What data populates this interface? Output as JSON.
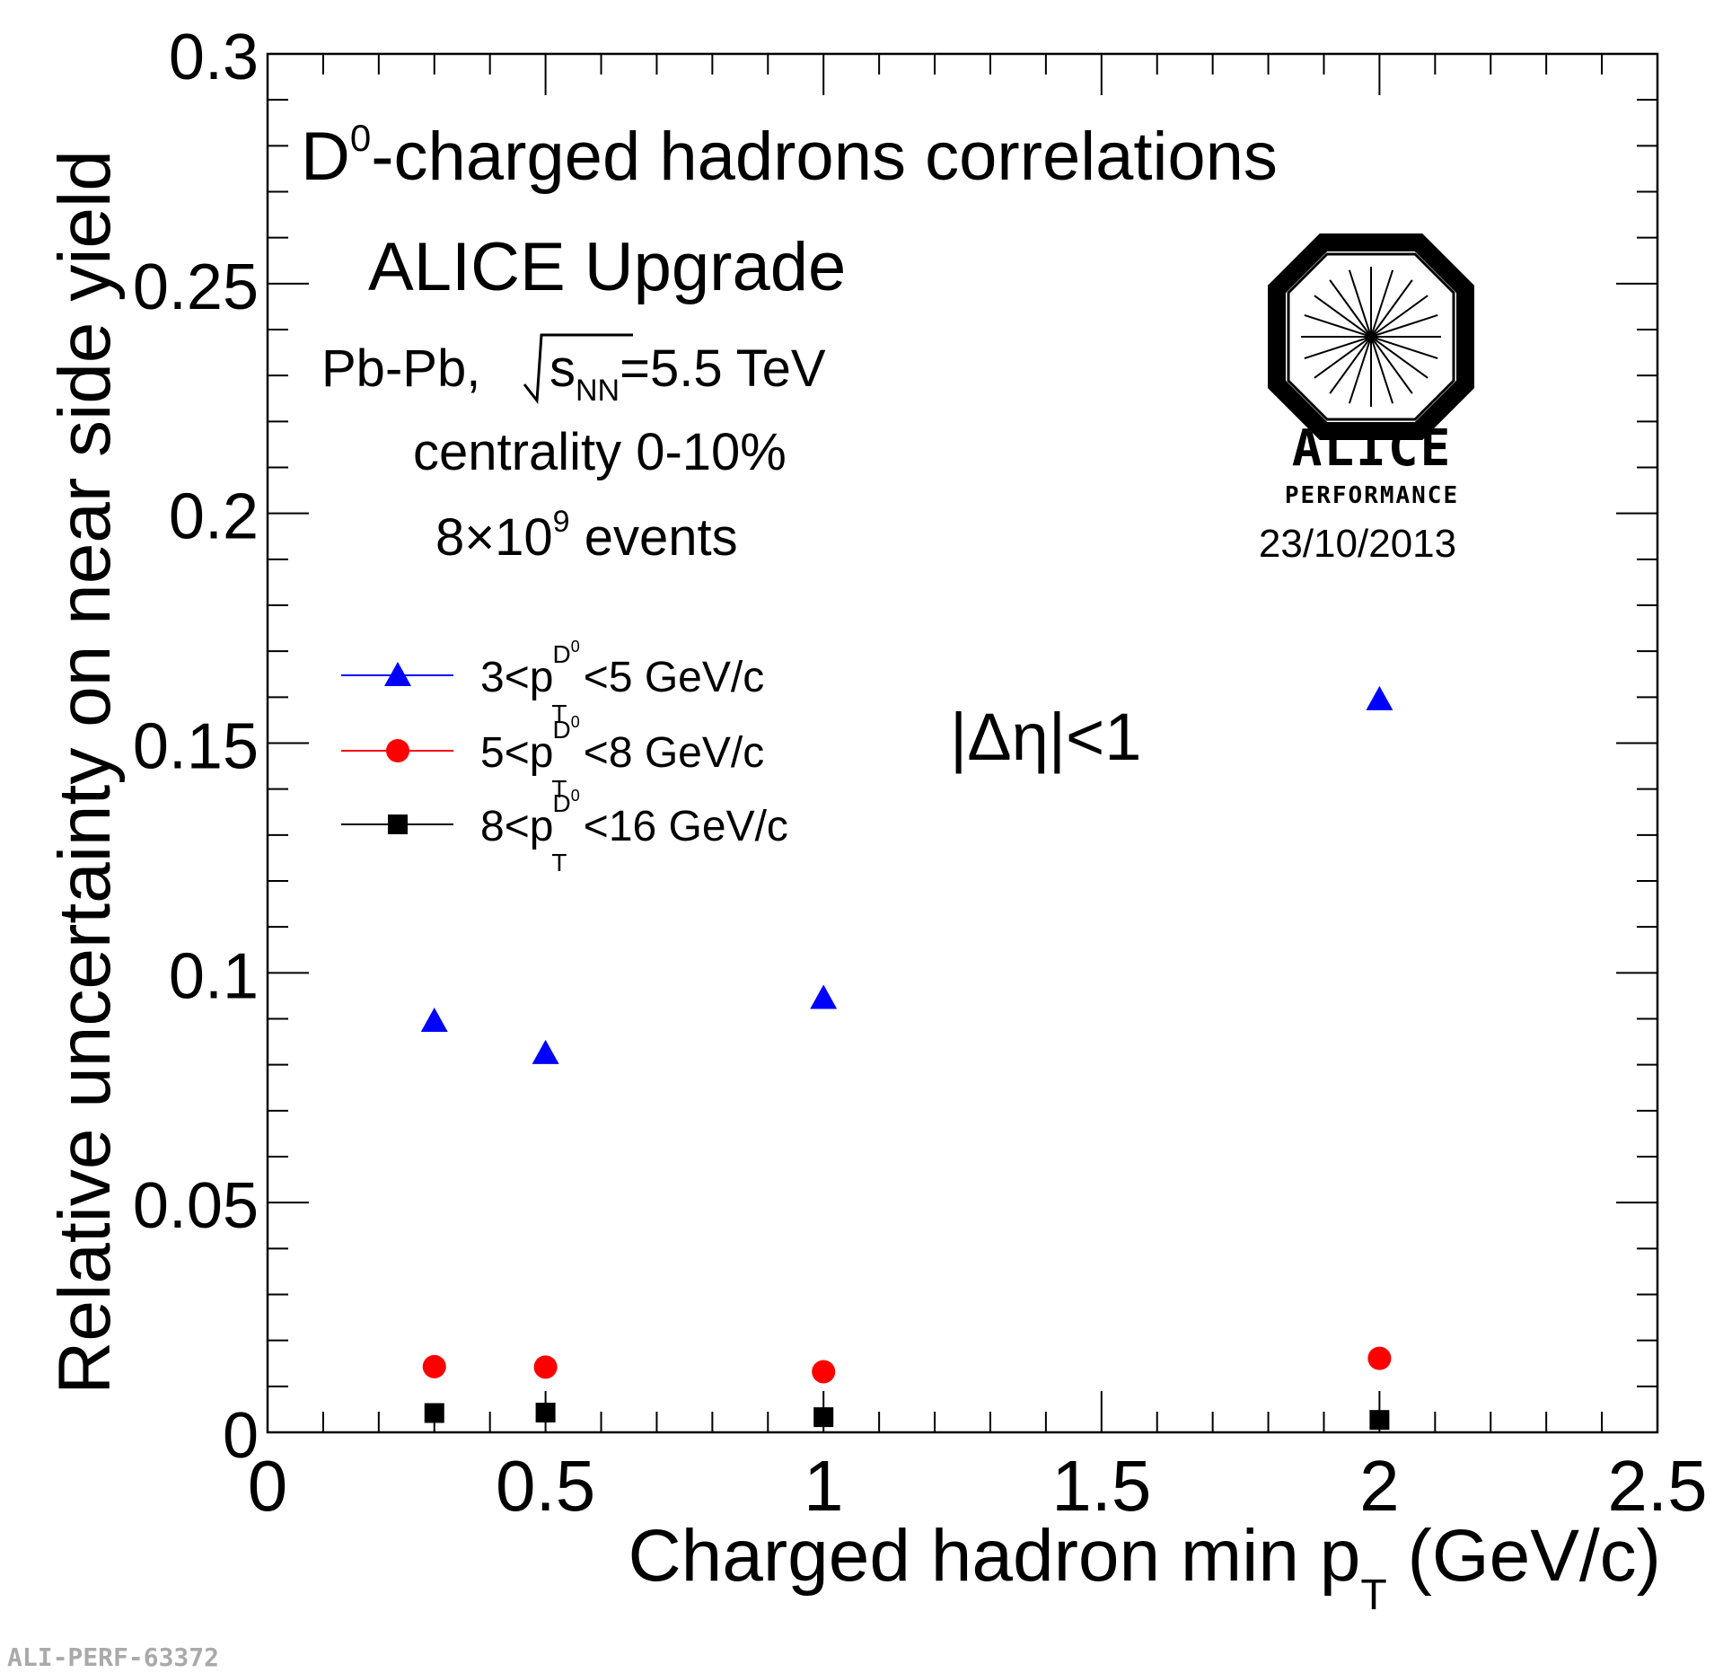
{
  "chart_data": {
    "type": "scatter",
    "title": "D0-charged hadrons correlations",
    "xlabel": "Charged hadron min pT (GeV/c)",
    "ylabel": "Relative uncertainty on near side yield",
    "xlim": [
      0,
      2.5
    ],
    "ylim": [
      0,
      0.3
    ],
    "x_ticks": [
      "0",
      "0.5",
      "1",
      "1.5",
      "2",
      "2.5"
    ],
    "y_ticks": [
      "0",
      "0.05",
      "0.1",
      "0.15",
      "0.2",
      "0.25",
      "0.3"
    ],
    "grid": false,
    "legend_position": "middle-left",
    "series": [
      {
        "name": "3<pT D0<5 GeV/c",
        "legend_pre": "3<p",
        "legend_post": "<5 GeV/c",
        "color": "#0000ff",
        "marker": "triangle",
        "x": [
          0.3,
          0.5,
          1.0,
          2.0
        ],
        "values": [
          0.0895,
          0.0825,
          0.0945,
          0.1595
        ]
      },
      {
        "name": "5<pT D0<8 GeV/c",
        "legend_pre": "5<p",
        "legend_post": "<8 GeV/c",
        "color": "#ff0000",
        "marker": "circle",
        "x": [
          0.3,
          0.5,
          1.0,
          2.0
        ],
        "values": [
          0.0143,
          0.0142,
          0.0132,
          0.0161
        ]
      },
      {
        "name": "8<pT D0<16 GeV/c",
        "legend_pre": "8<p",
        "legend_post": "<16 GeV/c",
        "color": "#000000",
        "marker": "square",
        "x": [
          0.3,
          0.5,
          1.0,
          2.0
        ],
        "values": [
          0.0042,
          0.0043,
          0.0033,
          0.0027
        ]
      }
    ],
    "annotations": {
      "title_main": "D",
      "title_sup": "0",
      "title_rest": "-charged hadrons correlations",
      "upgrade": "ALICE Upgrade",
      "system_pre": "Pb-Pb, ",
      "system_s": "s",
      "system_sub": "NN",
      "system_post": "=5.5 TeV",
      "centrality": "centrality 0-10%",
      "events_pre": "8×10",
      "events_sup": "9",
      "events_post": " events",
      "eta_cut": "|Δη|<1",
      "logo_name": "ALICE",
      "logo_sub": "PERFORMANCE",
      "date": "23/10/2013",
      "figure_id": "ALI-PERF-63372",
      "xlabel_main": "Charged hadron min p",
      "xlabel_sub": "T",
      "xlabel_unit": " (GeV/c)",
      "pT_sub": "T",
      "pT_sup": "D",
      "pT_sup2": "0"
    }
  }
}
